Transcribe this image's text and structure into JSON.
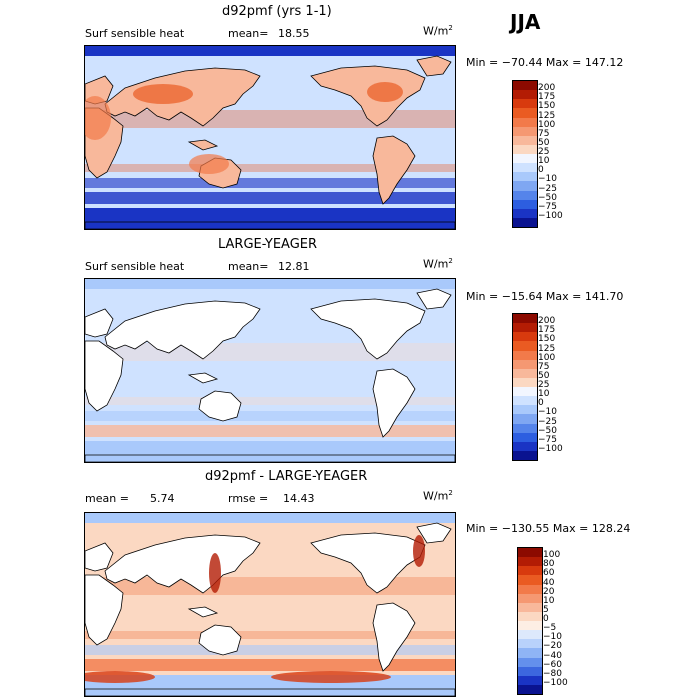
{
  "season": "JJA",
  "panels": [
    {
      "title": "d92pmf (yrs 1-1)",
      "left_label": "Surf sensible heat",
      "stat_label": "mean=",
      "stat_value": "18.55",
      "stat2_label": "",
      "stat2_value": "",
      "units": "W/m",
      "units_sup": "2",
      "minmax": "Min = −70.44  Max = 147.12",
      "levels": [
        "200",
        "175",
        "150",
        "125",
        "100",
        "75",
        "50",
        "25",
        "10",
        "0",
        "−10",
        "−25",
        "−50",
        "−75",
        "−100"
      ],
      "colors": [
        "#8c0a00",
        "#b31c04",
        "#d83a0e",
        "#ea5b22",
        "#f27a4a",
        "#f59872",
        "#f8b89b",
        "#fbd8c2",
        "#f2f6ff",
        "#cfe2ff",
        "#a9c9fb",
        "#7fa7f2",
        "#5584ea",
        "#2d5ee0",
        "#1a34c4",
        "#0a1390"
      ],
      "map": {
        "ocean": "#cfe2ff",
        "land": "#f8b89b",
        "accent_warm": "#ea5b22",
        "accent_cold": "#1a34c4",
        "south_band": "#1a34c4"
      }
    },
    {
      "title": "LARGE-YEAGER",
      "left_label": "Surf sensible heat",
      "stat_label": "mean=",
      "stat_value": "12.81",
      "stat2_label": "",
      "stat2_value": "",
      "units": "W/m",
      "units_sup": "2",
      "minmax": "Min = −15.64  Max = 141.70",
      "levels": [
        "200",
        "175",
        "150",
        "125",
        "100",
        "75",
        "50",
        "25",
        "10",
        "0",
        "−10",
        "−25",
        "−50",
        "−75",
        "−100"
      ],
      "colors": [
        "#8c0a00",
        "#b31c04",
        "#d83a0e",
        "#ea5b22",
        "#f27a4a",
        "#f59872",
        "#f8b89b",
        "#fbd8c2",
        "#f2f6ff",
        "#cfe2ff",
        "#a9c9fb",
        "#7fa7f2",
        "#5584ea",
        "#2d5ee0",
        "#1a34c4",
        "#0a1390"
      ],
      "map": {
        "ocean": "#cfe2ff",
        "land": "#ffffff",
        "accent_warm": "#fbd8c2",
        "accent_cold": "#a9c9fb",
        "south_band": "#f8b89b"
      }
    },
    {
      "title": "d92pmf - LARGE-YEAGER",
      "left_label": "",
      "stat_label": "mean =",
      "stat_value": "5.74",
      "stat2_label": "rmse =",
      "stat2_value": "14.43",
      "units": "W/m",
      "units_sup": "2",
      "minmax": "Min = −130.55  Max = 128.24",
      "levels": [
        "100",
        "80",
        "60",
        "40",
        "20",
        "10",
        "5",
        "0",
        "−5",
        "−10",
        "−20",
        "−40",
        "−60",
        "−80",
        "−100"
      ],
      "colors": [
        "#8c0a00",
        "#b31c04",
        "#d83a0e",
        "#ea5b22",
        "#f27a4a",
        "#f59872",
        "#f8b89b",
        "#fbd8c2",
        "#fdeee4",
        "#dde9fc",
        "#b9d2fb",
        "#8fb4f5",
        "#6490ec",
        "#3c67df",
        "#1a34c4",
        "#0a1390"
      ],
      "map": {
        "ocean": "#fbd8c2",
        "land": "#ffffff",
        "accent_warm": "#f27a4a",
        "accent_cold": "#a9c9fb",
        "south_band": "#f27a4a"
      }
    }
  ]
}
